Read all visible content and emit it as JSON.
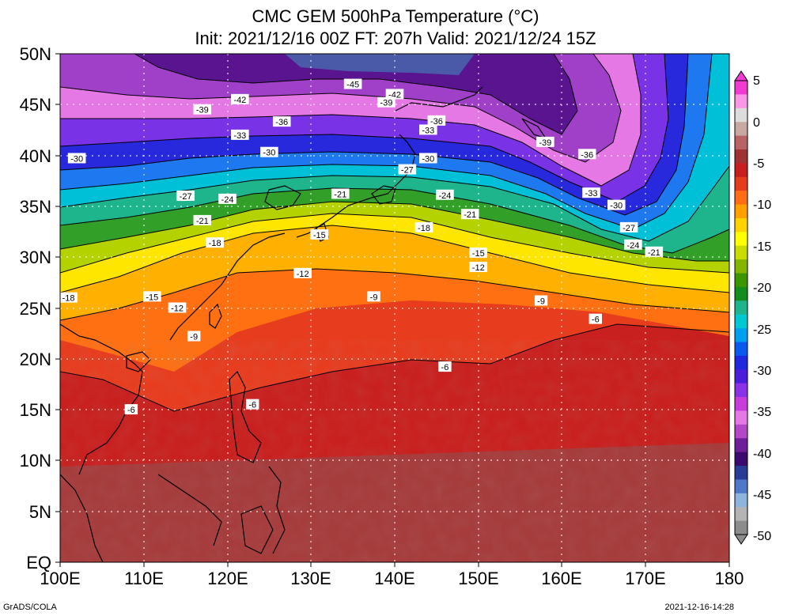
{
  "title": {
    "line1": "CMC GEM 500hPa Temperature (°C)",
    "line2": "Init: 2021/12/16 00Z  FT: 207h  Valid: 2021/12/24 15Z"
  },
  "map": {
    "lat_labels": [
      "50N",
      "45N",
      "40N",
      "35N",
      "30N",
      "25N",
      "20N",
      "15N",
      "10N",
      "5N",
      "EQ"
    ],
    "lon_labels": [
      "100E",
      "110E",
      "120E",
      "130E",
      "140E",
      "150E",
      "160E",
      "170E",
      "180"
    ],
    "contour_labels": [
      {
        "text": "-45",
        "lon": 135,
        "lat": 47.0
      },
      {
        "text": "-42",
        "lon": 121.5,
        "lat": 45.5
      },
      {
        "text": "-42",
        "lon": 140,
        "lat": 46.0
      },
      {
        "text": "-39",
        "lon": 117,
        "lat": 44.5
      },
      {
        "text": "-39",
        "lon": 139,
        "lat": 45.2
      },
      {
        "text": "-39",
        "lon": 158,
        "lat": 41.3
      },
      {
        "text": "-36",
        "lon": 126.5,
        "lat": 43.3
      },
      {
        "text": "-36",
        "lon": 145,
        "lat": 43.4
      },
      {
        "text": "-36",
        "lon": 163,
        "lat": 40.1
      },
      {
        "text": "-33",
        "lon": 121.5,
        "lat": 42.0
      },
      {
        "text": "-33",
        "lon": 144,
        "lat": 42.5
      },
      {
        "text": "-33",
        "lon": 163.5,
        "lat": 36.3
      },
      {
        "text": "-30",
        "lon": 102,
        "lat": 39.7
      },
      {
        "text": "-30",
        "lon": 125,
        "lat": 40.3
      },
      {
        "text": "-30",
        "lon": 144,
        "lat": 39.7
      },
      {
        "text": "-30",
        "lon": 166.5,
        "lat": 35.1
      },
      {
        "text": "-27",
        "lon": 115,
        "lat": 36.0
      },
      {
        "text": "-27",
        "lon": 141.5,
        "lat": 38.6
      },
      {
        "text": "-27",
        "lon": 168,
        "lat": 32.9
      },
      {
        "text": "-24",
        "lon": 120,
        "lat": 35.7
      },
      {
        "text": "-24",
        "lon": 146,
        "lat": 36.1
      },
      {
        "text": "-24",
        "lon": 168.5,
        "lat": 31.2
      },
      {
        "text": "-21",
        "lon": 133.5,
        "lat": 36.2
      },
      {
        "text": "-21",
        "lon": 149,
        "lat": 34.2
      },
      {
        "text": "-21",
        "lon": 117,
        "lat": 33.6
      },
      {
        "text": "-21",
        "lon": 171,
        "lat": 30.5
      },
      {
        "text": "-18",
        "lon": 118.5,
        "lat": 31.4
      },
      {
        "text": "-18",
        "lon": 143.5,
        "lat": 32.9
      },
      {
        "text": "-18",
        "lon": 101,
        "lat": 26.0
      },
      {
        "text": "-15",
        "lon": 131,
        "lat": 32.2
      },
      {
        "text": "-15",
        "lon": 150,
        "lat": 30.4
      },
      {
        "text": "-15",
        "lon": 111,
        "lat": 26.1
      },
      {
        "text": "-12",
        "lon": 129,
        "lat": 28.4
      },
      {
        "text": "-12",
        "lon": 150,
        "lat": 29.0
      },
      {
        "text": "-12",
        "lon": 114,
        "lat": 25.0
      },
      {
        "text": "-9",
        "lon": 137.5,
        "lat": 26.1
      },
      {
        "text": "-9",
        "lon": 157.5,
        "lat": 25.7
      },
      {
        "text": "-9",
        "lon": 116,
        "lat": 22.2
      },
      {
        "text": "-6",
        "lon": 164,
        "lat": 23.9
      },
      {
        "text": "-6",
        "lon": 146,
        "lat": 19.2
      },
      {
        "text": "-6",
        "lon": 123,
        "lat": 15.5
      },
      {
        "text": "-6",
        "lon": 108.5,
        "lat": 15.0
      }
    ]
  },
  "colorbar": {
    "labels": [
      "5",
      "0",
      "-5",
      "-10",
      "-15",
      "-20",
      "-25",
      "-30",
      "-35",
      "-40",
      "-45",
      "-50"
    ],
    "colors": [
      "#f03cd2",
      "#fa96e6",
      "#dcdcdc",
      "#c8a8a0",
      "#b96464",
      "#a03232",
      "#c81e1e",
      "#e63c1e",
      "#ff6e14",
      "#ffa000",
      "#ffd200",
      "#ffff00",
      "#c8dc00",
      "#82b400",
      "#3c9600",
      "#148c1e",
      "#1eb48c",
      "#00c8d2",
      "#00a0f0",
      "#0a5af0",
      "#1e28dc",
      "#4b1edc",
      "#8c32e6",
      "#c83cdc",
      "#e678e6",
      "#b446c8",
      "#6e1e9b",
      "#3c0a6e",
      "#283c96",
      "#5078c8",
      "#8cb4dc",
      "#b4b4b4",
      "#8c8c8c"
    ]
  },
  "footer": {
    "left": "GrADS/COLA",
    "right": "2021-12-16-14:28"
  }
}
